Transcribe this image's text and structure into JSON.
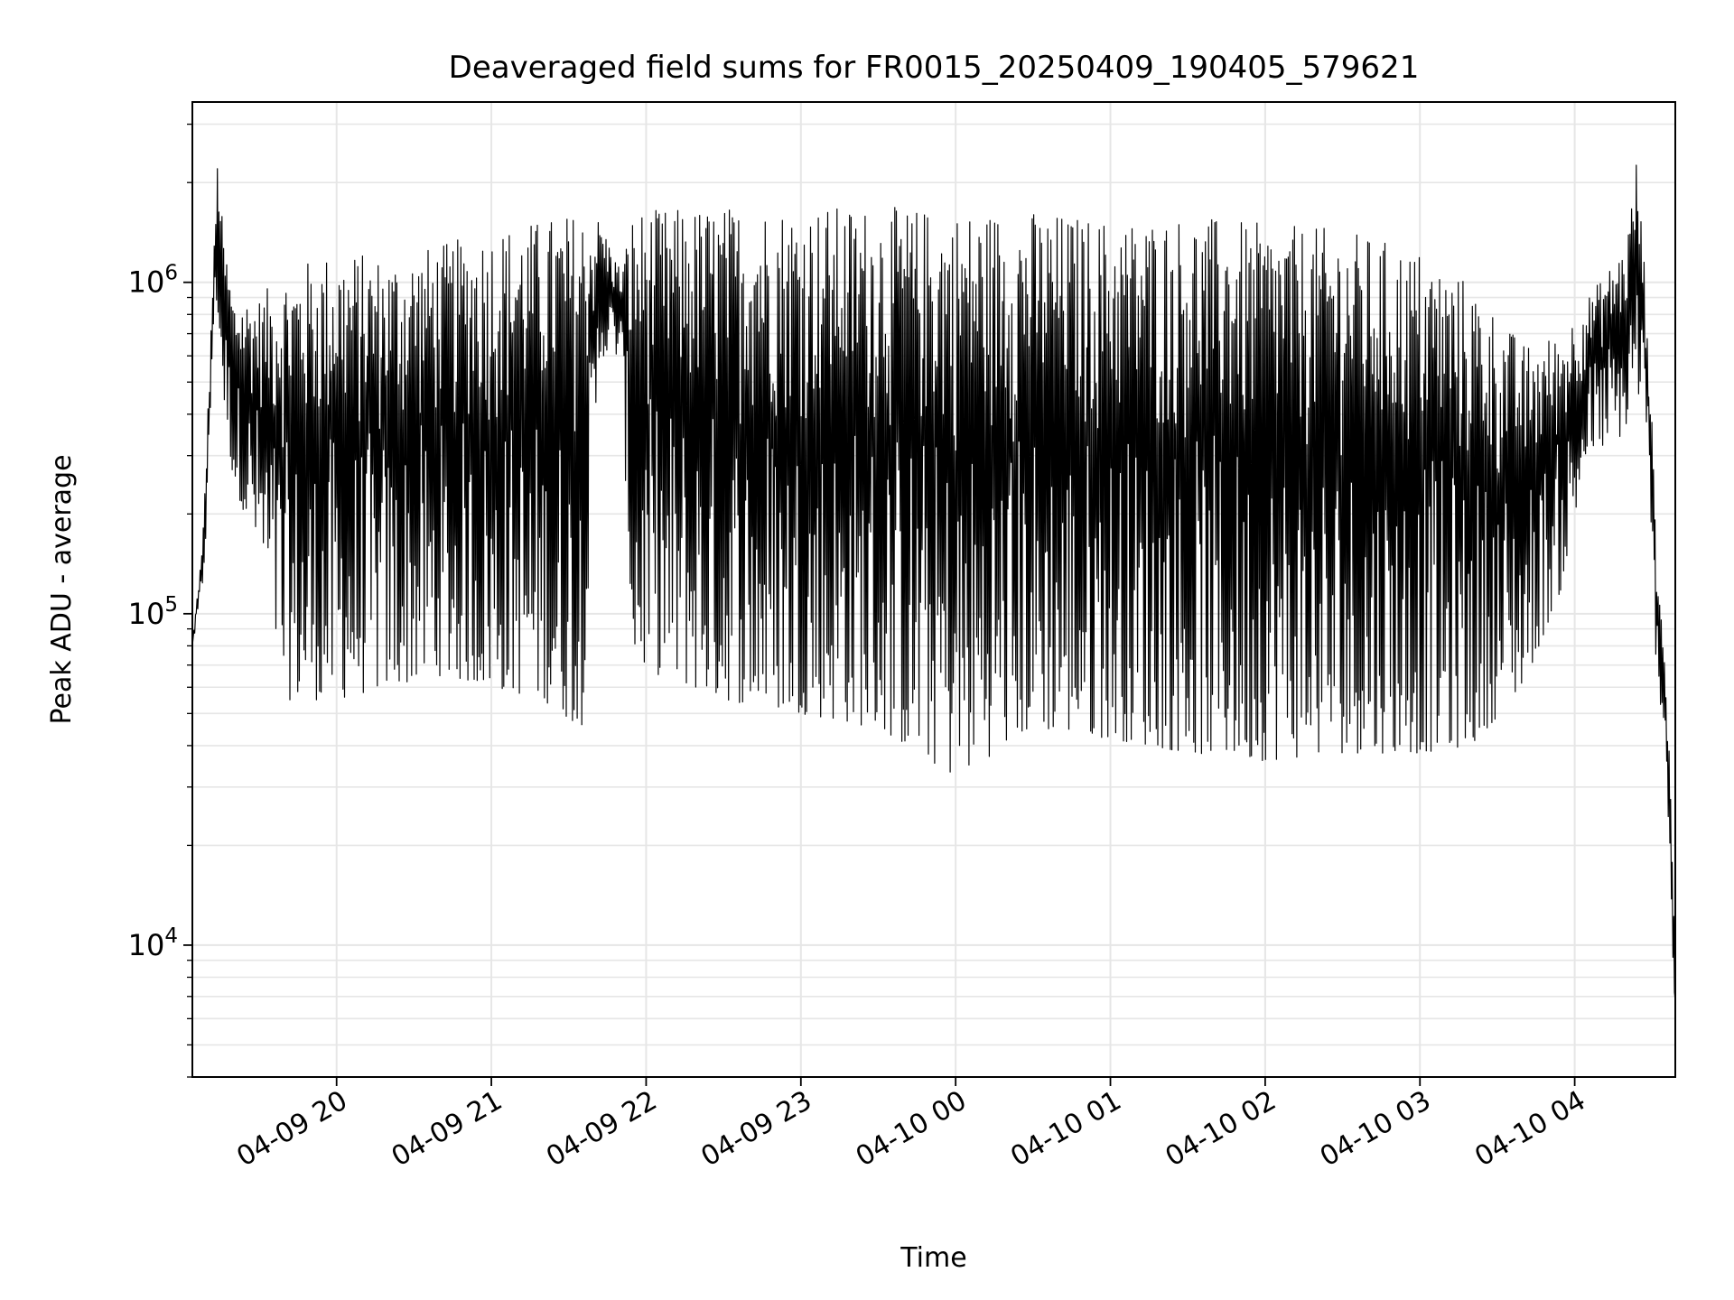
{
  "chart_data": {
    "type": "line",
    "title": "Deaveraged field sums for FR0015_20250409_190405_579621",
    "xlabel": "Time",
    "ylabel": "Peak ADU - average",
    "x_range": [
      "2025-04-09 19:04:05",
      "2025-04-10 04:39:00"
    ],
    "ylim": [
      4000,
      3500000
    ],
    "y_scale": "log",
    "y_ticks": [
      {
        "value": 10000,
        "base": "10",
        "exponent": "4"
      },
      {
        "value": 100000,
        "base": "10",
        "exponent": "5"
      },
      {
        "value": 1000000,
        "base": "10",
        "exponent": "6"
      }
    ],
    "x_ticks": [
      {
        "value": "2025-04-09 20:00",
        "label": "04-09 20"
      },
      {
        "value": "2025-04-09 21:00",
        "label": "04-09 21"
      },
      {
        "value": "2025-04-09 22:00",
        "label": "04-09 22"
      },
      {
        "value": "2025-04-09 23:00",
        "label": "04-09 23"
      },
      {
        "value": "2025-04-10 00:00",
        "label": "04-10 00"
      },
      {
        "value": "2025-04-10 01:00",
        "label": "04-10 01"
      },
      {
        "value": "2025-04-10 02:00",
        "label": "04-10 02"
      },
      {
        "value": "2025-04-10 03:00",
        "label": "04-10 03"
      },
      {
        "value": "2025-04-10 04:00",
        "label": "04-10 04"
      }
    ],
    "grid": true,
    "line_color": "#000000",
    "grid_color": "#e6e6e6",
    "series": [
      {
        "envelope_points": [
          {
            "x": "2025-04-09 19:04:05",
            "high": 80000,
            "low": 80000
          },
          {
            "x": "2025-04-09 19:06:00",
            "high": 115000,
            "low": 95000
          },
          {
            "x": "2025-04-09 19:08:00",
            "high": 160000,
            "low": 120000
          },
          {
            "x": "2025-04-09 19:10:00",
            "high": 400000,
            "low": 200000
          },
          {
            "x": "2025-04-09 19:12:00",
            "high": 1000000,
            "low": 700000
          },
          {
            "x": "2025-04-09 19:14:00",
            "high": 2600000,
            "low": 800000
          },
          {
            "x": "2025-04-09 19:16:00",
            "high": 1400000,
            "low": 450000
          },
          {
            "x": "2025-04-09 19:20:00",
            "high": 900000,
            "low": 250000
          },
          {
            "x": "2025-04-09 19:30:00",
            "high": 900000,
            "low": 150000
          },
          {
            "x": "2025-04-09 19:40:00",
            "high": 1100000,
            "low": 55000
          },
          {
            "x": "2025-04-09 20:00:00",
            "high": 1250000,
            "low": 55000
          },
          {
            "x": "2025-04-09 20:20:00",
            "high": 1200000,
            "low": 60000
          },
          {
            "x": "2025-04-09 20:40:00",
            "high": 1300000,
            "low": 65000
          },
          {
            "x": "2025-04-09 21:00:00",
            "high": 1450000,
            "low": 60000
          },
          {
            "x": "2025-04-09 21:20:00",
            "high": 1550000,
            "low": 55000
          },
          {
            "x": "2025-04-09 21:35:00",
            "high": 1650000,
            "low": 45000
          },
          {
            "x": "2025-04-09 21:42:00",
            "high": 1550000,
            "low": 600000
          },
          {
            "x": "2025-04-09 21:50:00",
            "high": 1100000,
            "low": 600000
          },
          {
            "x": "2025-04-09 21:55:00",
            "high": 1650000,
            "low": 70000
          },
          {
            "x": "2025-04-09 22:30:00",
            "high": 1700000,
            "low": 55000
          },
          {
            "x": "2025-04-09 23:00:00",
            "high": 1700000,
            "low": 50000
          },
          {
            "x": "2025-04-09 23:30:00",
            "high": 1700000,
            "low": 45000
          },
          {
            "x": "2025-04-10 00:00:00",
            "high": 1650000,
            "low": 32000
          },
          {
            "x": "2025-04-10 00:30:00",
            "high": 1650000,
            "low": 45000
          },
          {
            "x": "2025-04-10 01:00:00",
            "high": 1550000,
            "low": 42000
          },
          {
            "x": "2025-04-10 01:30:00",
            "high": 1600000,
            "low": 38000
          },
          {
            "x": "2025-04-10 02:00:00",
            "high": 1500000,
            "low": 36000
          },
          {
            "x": "2025-04-10 02:30:00",
            "high": 1450000,
            "low": 38000
          },
          {
            "x": "2025-04-10 03:00:00",
            "high": 1250000,
            "low": 38000
          },
          {
            "x": "2025-04-10 03:20:00",
            "high": 1000000,
            "low": 40000
          },
          {
            "x": "2025-04-10 03:40:00",
            "high": 650000,
            "low": 60000
          },
          {
            "x": "2025-04-10 03:55:00",
            "high": 700000,
            "low": 120000
          },
          {
            "x": "2025-04-10 04:05:00",
            "high": 900000,
            "low": 300000
          },
          {
            "x": "2025-04-10 04:20:00",
            "high": 1300000,
            "low": 350000
          },
          {
            "x": "2025-04-10 04:24:00",
            "high": 2400000,
            "low": 500000
          },
          {
            "x": "2025-04-10 04:28:00",
            "high": 900000,
            "low": 300000
          },
          {
            "x": "2025-04-10 04:32:00",
            "high": 150000,
            "low": 60000
          },
          {
            "x": "2025-04-10 04:35:00",
            "high": 70000,
            "low": 45000
          },
          {
            "x": "2025-04-10 04:37:00",
            "high": 35000,
            "low": 17000
          },
          {
            "x": "2025-04-10 04:39:00",
            "high": 8000,
            "low": 5000
          }
        ]
      }
    ]
  }
}
